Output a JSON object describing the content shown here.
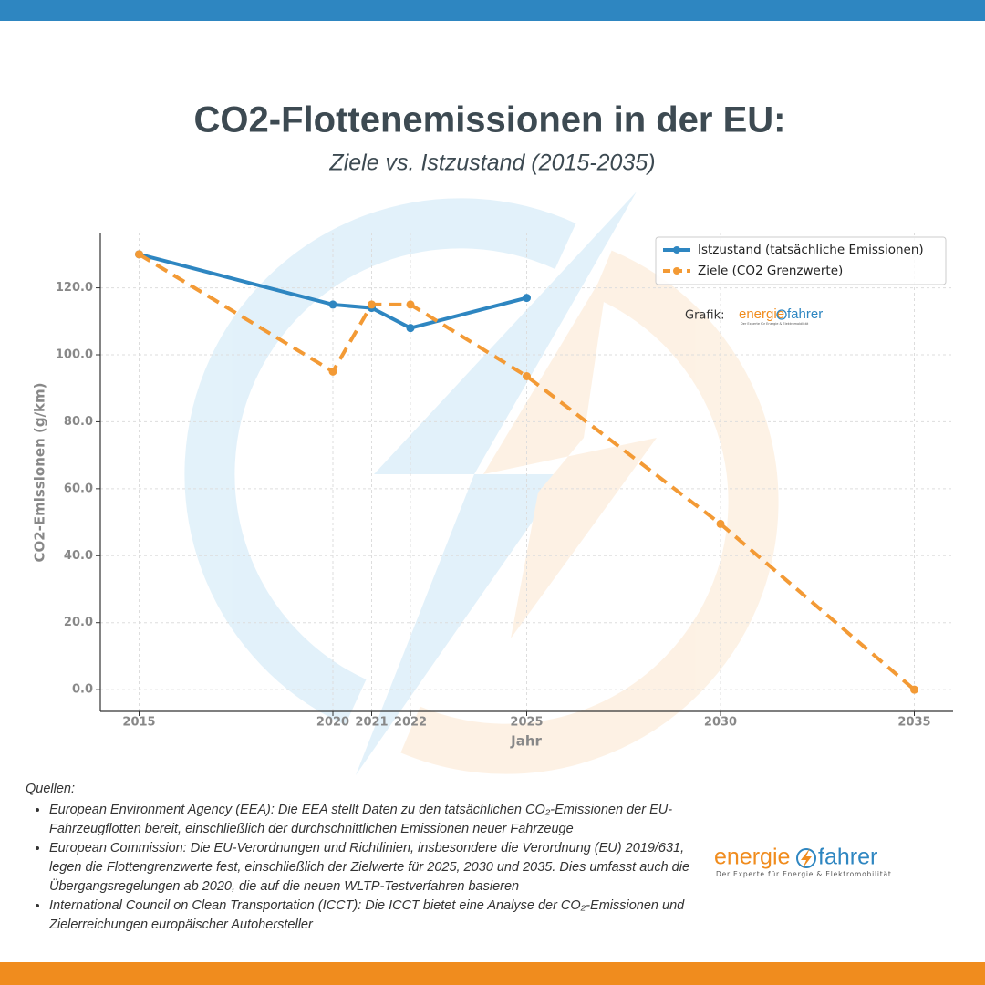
{
  "chart_data": {
    "type": "line",
    "title": "CO2-Flottenemissionen in der EU:",
    "subtitle": "Ziele vs. Istzustand (2015-2035)",
    "x_label": "Jahr",
    "y_label": "CO2-Emissionen (g/km)",
    "x": [
      2015,
      2020,
      2021,
      2022,
      2025,
      2030,
      2035
    ],
    "series": [
      {
        "name": "Istzustand (tatsächliche Emissionen)",
        "color": "#2e86c1",
        "dashed": false,
        "values": [
          130,
          115,
          114,
          108,
          117,
          null,
          null
        ]
      },
      {
        "name": "Ziele (CO2 Grenzwerte)",
        "color": "#f39a35",
        "dashed": true,
        "values": [
          130,
          95,
          115,
          115,
          93.6,
          49.5,
          0
        ]
      }
    ],
    "xlim": [
      2014,
      2036
    ],
    "xticks": [
      2015,
      2020,
      2021,
      2022,
      2025,
      2030,
      2035
    ],
    "ylim": [
      -6.5,
      136.5
    ],
    "yticks": [
      {
        "value": 0,
        "label": "0.0"
      },
      {
        "value": 20,
        "label": "20.0"
      },
      {
        "value": 40,
        "label": "40.0"
      },
      {
        "value": 60,
        "label": "60.0"
      },
      {
        "value": 80,
        "label": "80.0"
      },
      {
        "value": 100,
        "label": "100.0"
      },
      {
        "value": 120,
        "label": "120.0"
      }
    ],
    "grid": true,
    "legend": "upper right"
  },
  "graphic_credit": "Grafik:",
  "logo": {
    "part1": "energie",
    "part2": "fahrer",
    "tagline": "Der Experte für Energie & Elektromobilität"
  },
  "sources": {
    "heading": "Quellen:",
    "items": [
      "European Environment Agency (EEA): Die EEA stellt Daten zu den tatsächlichen CO₂-Emissionen der EU-Fahrzeugflotten bereit, einschließlich der durchschnittlichen Emissionen neuer Fahrzeuge",
      "European Commission: Die EU-Verordnungen und Richtlinien, insbesondere die Verordnung (EU) 2019/631, legen die Flottengrenzwerte fest, einschließlich der Zielwerte für 2025, 2030 und 2035. Dies umfasst auch die Übergangsregelungen ab 2020, die auf die neuen WLTP-Testverfahren basieren",
      "International Council on Clean Transportation (ICCT): Die ICCT bietet eine Analyse der CO₂-Emissionen und Zielerreichungen europäischer Autohersteller"
    ]
  }
}
